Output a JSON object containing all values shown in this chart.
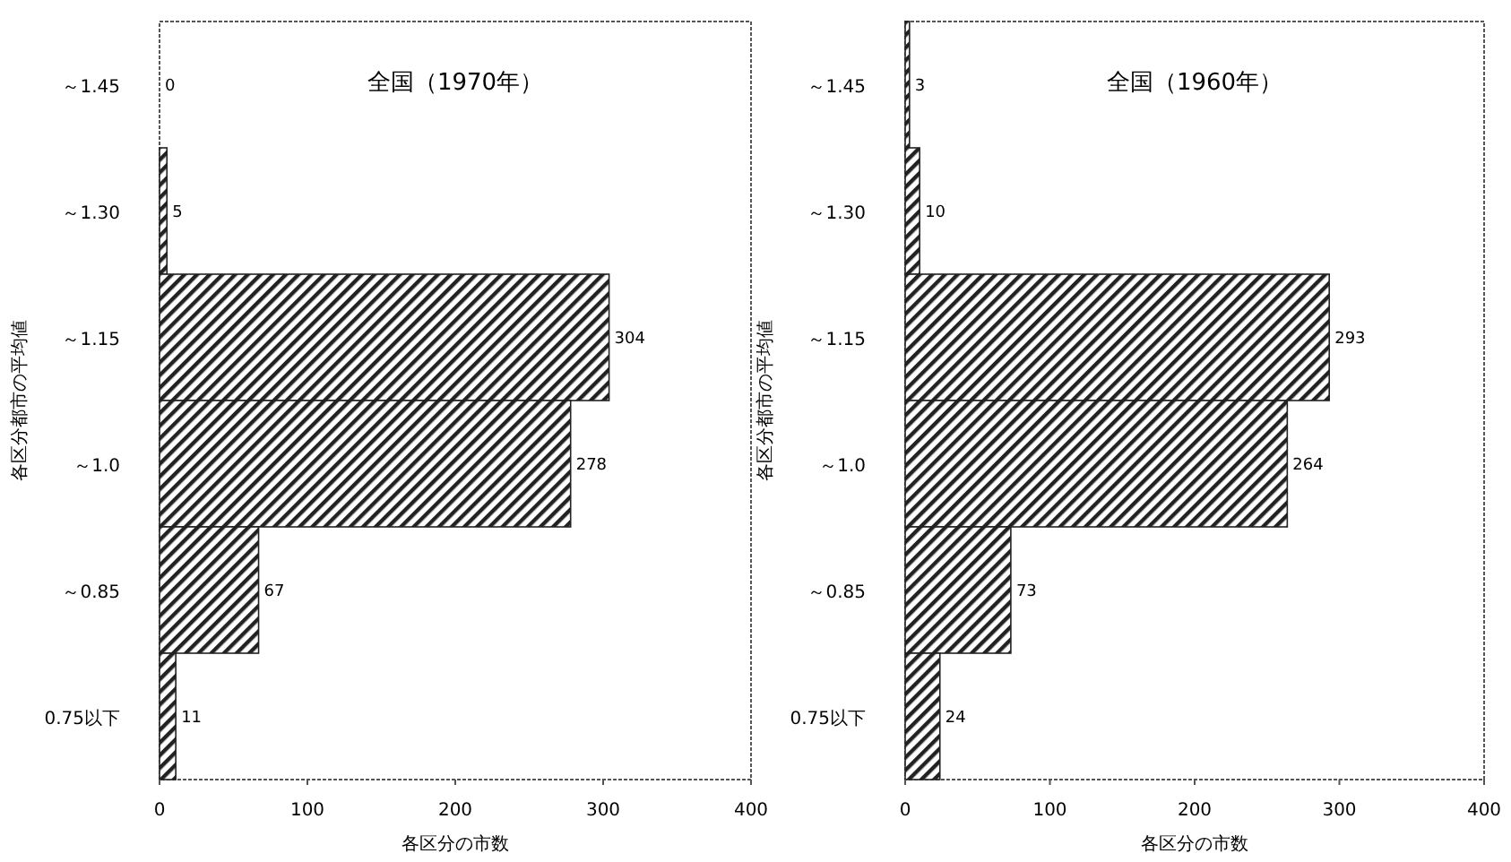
{
  "chart_data": [
    {
      "type": "bar",
      "orientation": "horizontal",
      "title": "全国（1970年）",
      "xlabel": "各区分の市数",
      "ylabel": "各区分都市の平均値",
      "categories": [
        "～1.45",
        "～1.30",
        "～1.15",
        "～1.0",
        "～0.85",
        "0.75以下"
      ],
      "values": [
        0,
        5,
        304,
        278,
        67,
        11
      ],
      "color": "#222222",
      "xlim": [
        0,
        400
      ],
      "xticks": [
        0,
        100,
        200,
        300,
        400
      ],
      "data_labels": true
    },
    {
      "type": "bar",
      "orientation": "horizontal",
      "title": "全国（1960年）",
      "xlabel": "各区分の市数",
      "ylabel": "各区分都市の平均値",
      "categories": [
        "～1.45",
        "～1.30",
        "～1.15",
        "～1.0",
        "～0.85",
        "0.75以下"
      ],
      "values": [
        3,
        10,
        293,
        264,
        73,
        24
      ],
      "color": "#222222",
      "xlim": [
        0,
        400
      ],
      "xticks": [
        0,
        100,
        200,
        300,
        400
      ],
      "data_labels": true
    }
  ]
}
